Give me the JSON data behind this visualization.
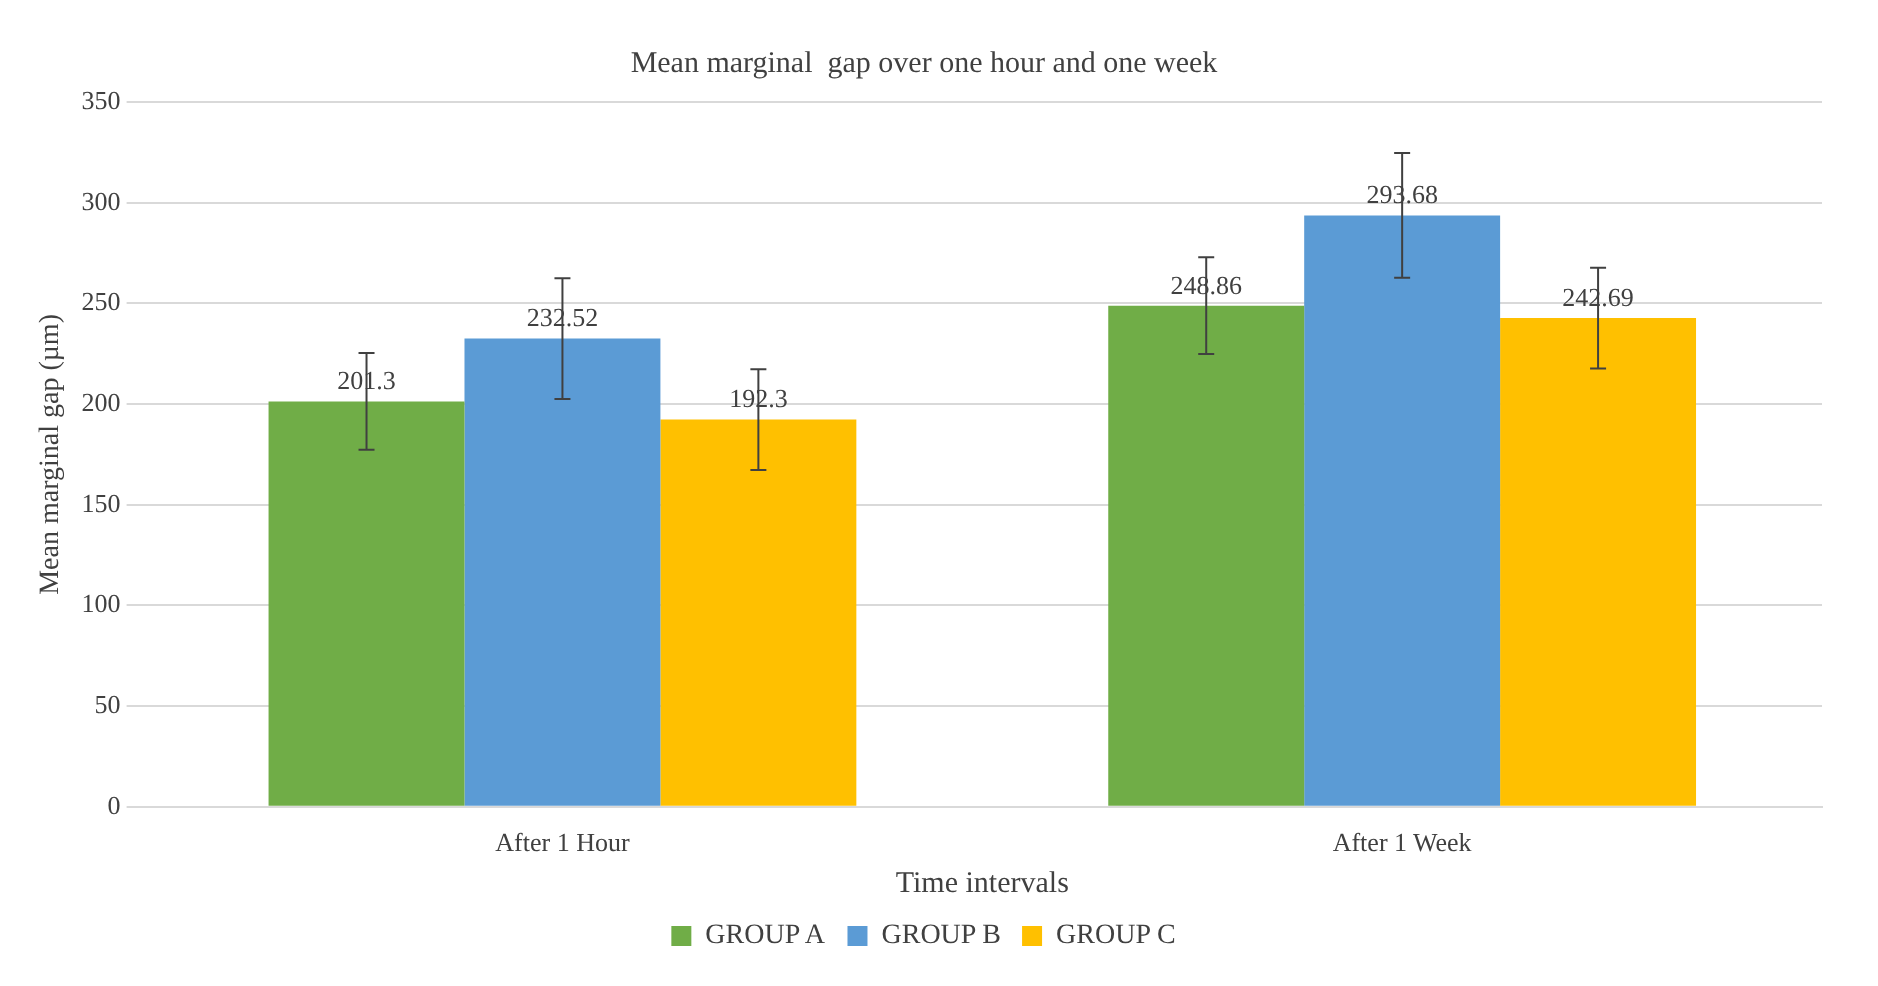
{
  "chart_data": {
    "type": "bar",
    "title": "Mean marginal  gap over one hour and one week",
    "xlabel": "Time intervals",
    "ylabel": "Mean marginal gap (µm)",
    "categories": [
      "After 1 Hour",
      "After 1 Week"
    ],
    "series": [
      {
        "name": "GROUP A",
        "color": "#70ad47",
        "values": [
          201.3,
          248.86
        ],
        "errors": [
          24,
          24
        ]
      },
      {
        "name": "GROUP B",
        "color": "#5b9bd5",
        "values": [
          232.52,
          293.68
        ],
        "errors": [
          30,
          31
        ]
      },
      {
        "name": "GROUP C",
        "color": "#ffc000",
        "values": [
          192.3,
          242.69
        ],
        "errors": [
          25,
          25
        ]
      }
    ],
    "ylim": [
      0,
      350
    ],
    "yticks": [
      0,
      50,
      100,
      150,
      200,
      250,
      300,
      350
    ],
    "grid": "y",
    "legend": "bottom",
    "data_labels": true
  }
}
